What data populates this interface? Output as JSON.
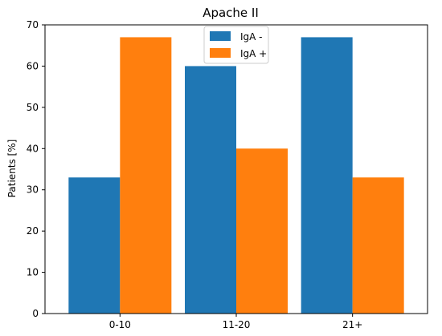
{
  "chart_data": {
    "type": "bar",
    "title": "Apache II",
    "xlabel": "",
    "ylabel": "Patients [%]",
    "categories": [
      "0-10",
      "11-20",
      "21+"
    ],
    "series": [
      {
        "name": "IgA -",
        "values": [
          33,
          60,
          67
        ],
        "color": "#1f77b4"
      },
      {
        "name": "IgA +",
        "values": [
          67,
          40,
          33
        ],
        "color": "#ff7f0e"
      }
    ],
    "ylim": [
      0,
      70
    ],
    "yticks": [
      "0",
      "10",
      "20",
      "30",
      "40",
      "50",
      "60",
      "70"
    ],
    "grid": false,
    "legend_position": "top-center"
  }
}
